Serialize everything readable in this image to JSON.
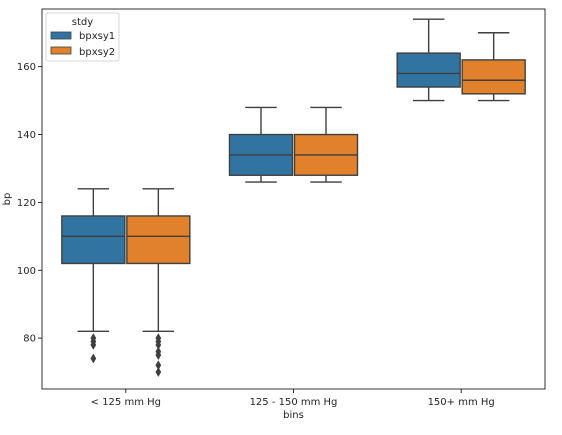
{
  "chart_data": {
    "type": "boxplot",
    "xlabel": "bins",
    "ylabel": "bp",
    "categories": [
      "< 125 mm Hg",
      "125 - 150 mm Hg",
      "150+ mm Hg"
    ],
    "ylim": [
      65,
      177
    ],
    "yticks": [
      80,
      100,
      120,
      140,
      160
    ],
    "legend": {
      "title": "stdy",
      "placement": "top-left"
    },
    "series": [
      {
        "name": "bpxsy1",
        "color": "#3274a1",
        "boxes": [
          {
            "whisker_low": 82,
            "q1": 102,
            "median": 110,
            "q3": 116,
            "whisker_high": 124,
            "outliers": [
              80,
              79,
              78,
              74
            ]
          },
          {
            "whisker_low": 126,
            "q1": 128,
            "median": 134,
            "q3": 140,
            "whisker_high": 148,
            "outliers": []
          },
          {
            "whisker_low": 150,
            "q1": 154,
            "median": 158,
            "q3": 164,
            "whisker_high": 174,
            "outliers": []
          }
        ]
      },
      {
        "name": "bpxsy2",
        "color": "#e1812c",
        "boxes": [
          {
            "whisker_low": 82,
            "q1": 102,
            "median": 110,
            "q3": 116,
            "whisker_high": 124,
            "outliers": [
              80,
              79,
              78,
              76,
              75,
              72,
              70
            ]
          },
          {
            "whisker_low": 126,
            "q1": 128,
            "median": 134,
            "q3": 140,
            "whisker_high": 148,
            "outliers": []
          },
          {
            "whisker_low": 150,
            "q1": 152,
            "median": 156,
            "q3": 162,
            "whisker_high": 170,
            "outliers": []
          }
        ]
      }
    ],
    "edge_color": "#3f3f3f"
  }
}
